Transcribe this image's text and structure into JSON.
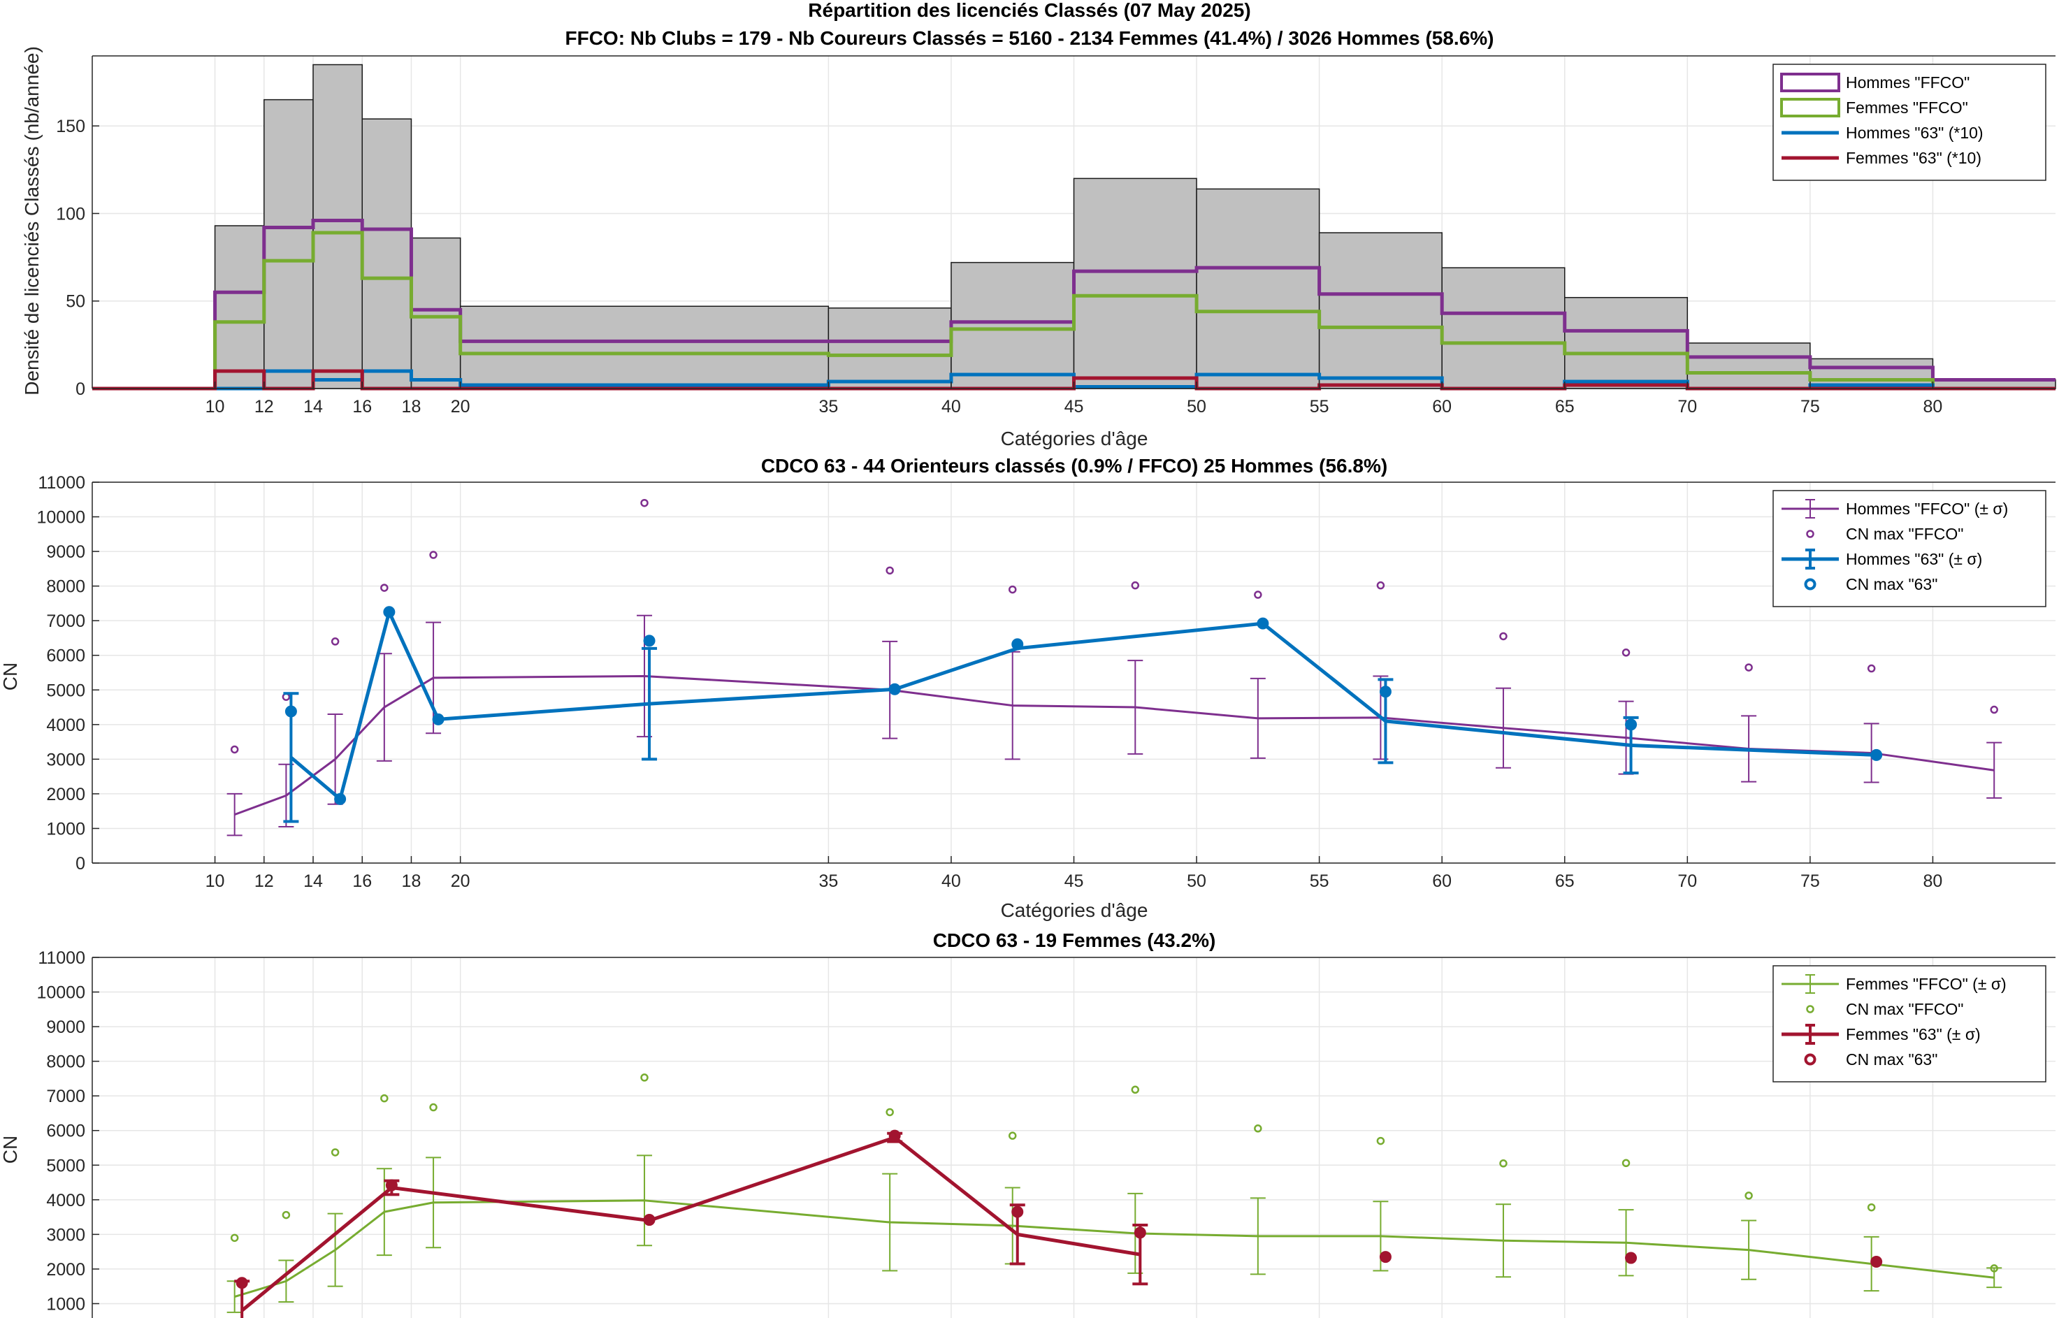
{
  "figure": {
    "title_line1": "Répartition des licenciés Classés (07 May 2025)",
    "title_line2": "FFCO: Nb Clubs = 179   -   Nb Coureurs Classés = 5160   -   2134 Femmes (41.4%) / 3026 Hommes (58.6%)"
  },
  "colors": {
    "homme_ffco": "#7e2f8e",
    "femme_ffco": "#77ac30",
    "homme_63": "#0072bd",
    "femme_63": "#a2142f",
    "bar_fill": "#c0c0c0",
    "bar_edge": "#1a1a1a"
  },
  "chart_data": [
    {
      "id": "density",
      "type": "bar",
      "title": "",
      "xlabel": "Catégories d'âge",
      "ylabel": "Densité de licenciés Classés (nb/année)",
      "xlim": [
        5,
        85
      ],
      "ylim": [
        0,
        190
      ],
      "xticks": [
        10,
        12,
        14,
        16,
        18,
        20,
        35,
        40,
        45,
        50,
        55,
        60,
        65,
        70,
        75,
        80
      ],
      "yticks": [
        0,
        50,
        100,
        150
      ],
      "grid": true,
      "legend_position": "top-right",
      "bin_edges": [
        10,
        12,
        14,
        16,
        18,
        20,
        35,
        40,
        45,
        50,
        55,
        60,
        65,
        70,
        75,
        80,
        85
      ],
      "total_values": [
        93,
        165,
        185,
        154,
        86,
        47,
        46,
        72,
        120,
        114,
        89,
        69,
        52,
        26,
        17,
        5
      ],
      "series": [
        {
          "name": "Hommes \"FFCO\"",
          "color_key": "homme_ffco",
          "values": [
            55,
            92,
            96,
            91,
            45,
            27,
            27,
            38,
            67,
            69,
            54,
            43,
            33,
            18,
            12,
            5
          ]
        },
        {
          "name": "Femmes \"FFCO\"",
          "color_key": "femme_ffco",
          "values": [
            38,
            73,
            89,
            63,
            41,
            20,
            19,
            34,
            53,
            44,
            35,
            26,
            20,
            9,
            5,
            0
          ]
        },
        {
          "name": "Hommes \"63\" (*10)",
          "color_key": "homme_63",
          "values": [
            0,
            10,
            5,
            10,
            5,
            2,
            4,
            8,
            1,
            8,
            6,
            0,
            4,
            0,
            2,
            0
          ]
        },
        {
          "name": "Femmes \"63\" (*10)",
          "color_key": "femme_63",
          "values": [
            10,
            0,
            10,
            0,
            0,
            0,
            0,
            0,
            6,
            0,
            2,
            0,
            2,
            0,
            0,
            0
          ]
        }
      ]
    },
    {
      "id": "men",
      "type": "line",
      "title": "CDCO 63  -  44 Orienteurs classés (0.9% / FFCO)  25 Hommes (56.8%)",
      "xlabel": "Catégories d'âge",
      "ylabel": "CN",
      "xlim": [
        5,
        85
      ],
      "ylim": [
        0,
        11000
      ],
      "xticks": [
        10,
        12,
        14,
        16,
        18,
        20,
        35,
        40,
        45,
        50,
        55,
        60,
        65,
        70,
        75,
        80
      ],
      "yticks": [
        0,
        1000,
        2000,
        3000,
        4000,
        5000,
        6000,
        7000,
        8000,
        9000,
        10000,
        11000
      ],
      "grid": true,
      "legend_position": "top-right",
      "series": [
        {
          "name": "Hommes \"FFCO\" (± σ)",
          "color_key": "homme_ffco",
          "kind": "errorbar",
          "line_width": 3,
          "cap": true,
          "x": [
            10.8,
            12.9,
            14.9,
            16.9,
            18.9,
            27.5,
            37.5,
            42.5,
            47.5,
            52.5,
            57.5,
            62.5,
            67.5,
            72.5,
            77.5,
            82.5
          ],
          "y": [
            1400,
            1950,
            3000,
            4500,
            5350,
            5400,
            5000,
            4550,
            4500,
            4180,
            4200,
            3900,
            3620,
            3300,
            3180,
            2680
          ],
          "err": [
            600,
            900,
            1300,
            1550,
            1600,
            1750,
            1400,
            1550,
            1350,
            1150,
            1200,
            1150,
            1050,
            950,
            850,
            800
          ]
        },
        {
          "name": "CN max \"FFCO\"",
          "color_key": "homme_ffco",
          "kind": "marker_small",
          "x": [
            10.8,
            12.9,
            14.9,
            16.9,
            18.9,
            27.5,
            37.5,
            42.5,
            47.5,
            52.5,
            57.5,
            62.5,
            67.5,
            72.5,
            77.5,
            82.5
          ],
          "y": [
            3280,
            4800,
            6400,
            7950,
            8900,
            10400,
            8450,
            7900,
            8020,
            7750,
            8020,
            6550,
            6080,
            5650,
            5620,
            4430
          ]
        },
        {
          "name": "Hommes \"63\" (± σ)",
          "color_key": "homme_63",
          "kind": "errorbar",
          "line_width": 5,
          "cap": true,
          "x": [
            13.1,
            15.1,
            17.1,
            19.1,
            27.7,
            37.7,
            42.7,
            52.7,
            57.7,
            67.7,
            77.7
          ],
          "y": [
            3050,
            1850,
            7250,
            4150,
            4600,
            5020,
            6200,
            6920,
            4100,
            3400,
            3120
          ],
          "err": [
            1850,
            0,
            0,
            0,
            1600,
            0,
            0,
            0,
            1200,
            800,
            0
          ]
        },
        {
          "name": "CN max \"63\"",
          "color_key": "homme_63",
          "kind": "marker_large",
          "x": [
            13.1,
            15.1,
            17.1,
            19.1,
            27.7,
            37.7,
            42.7,
            52.7,
            57.7,
            67.7,
            77.7
          ],
          "y": [
            4380,
            1850,
            7250,
            4150,
            6420,
            5020,
            6320,
            6920,
            4950,
            4000,
            3120
          ]
        }
      ]
    },
    {
      "id": "women",
      "type": "line",
      "title": "CDCO 63  -  19 Femmes (43.2%)",
      "xlabel": "",
      "ylabel": "CN",
      "xlim": [
        5,
        85
      ],
      "ylim": [
        0,
        11000
      ],
      "xticks": [
        10,
        12,
        14,
        16,
        18,
        20,
        35,
        40,
        45,
        50,
        55,
        60,
        65,
        70,
        75,
        80
      ],
      "yticks": [
        1000,
        2000,
        3000,
        4000,
        5000,
        6000,
        7000,
        8000,
        9000,
        10000,
        11000
      ],
      "grid": true,
      "legend_position": "top-right",
      "series": [
        {
          "name": "Femmes \"FFCO\" (± σ)",
          "color_key": "femme_ffco",
          "kind": "errorbar",
          "line_width": 3,
          "cap": true,
          "x": [
            10.8,
            12.9,
            14.9,
            16.9,
            18.9,
            27.5,
            37.5,
            42.5,
            47.5,
            52.5,
            57.5,
            62.5,
            67.5,
            72.5,
            77.5,
            82.5
          ],
          "y": [
            1200,
            1650,
            2550,
            3650,
            3920,
            3980,
            3350,
            3250,
            3030,
            2950,
            2950,
            2820,
            2760,
            2550,
            2150,
            1750
          ],
          "err": [
            450,
            600,
            1050,
            1250,
            1300,
            1300,
            1400,
            1100,
            1150,
            1100,
            1000,
            1050,
            950,
            850,
            780,
            280
          ]
        },
        {
          "name": "CN max \"FFCO\"",
          "color_key": "femme_ffco",
          "kind": "marker_small",
          "x": [
            10.8,
            12.9,
            14.9,
            16.9,
            18.9,
            27.5,
            37.5,
            42.5,
            47.5,
            52.5,
            57.5,
            62.5,
            67.5,
            72.5,
            77.5,
            82.5
          ],
          "y": [
            2900,
            3560,
            5370,
            6930,
            6670,
            7530,
            6530,
            5850,
            7180,
            6060,
            5700,
            5050,
            5060,
            4120,
            3780,
            2020
          ]
        },
        {
          "name": "Femmes \"63\" (± σ)",
          "color_key": "femme_63",
          "kind": "errorbar",
          "line_width": 5,
          "cap": true,
          "x": [
            11.1,
            17.2,
            27.7,
            37.7,
            42.7,
            47.7
          ],
          "y": [
            800,
            4350,
            3400,
            5800,
            3000,
            2420
          ],
          "err": [
            850,
            200,
            0,
            120,
            850,
            850
          ]
        },
        {
          "name": "CN max \"63\"",
          "color_key": "femme_63",
          "kind": "marker_large",
          "x": [
            11.1,
            17.2,
            27.7,
            37.7,
            42.7,
            47.7,
            57.7,
            67.7,
            77.7
          ],
          "y": [
            1600,
            4420,
            3420,
            5850,
            3650,
            3050,
            2350,
            2320,
            2210
          ]
        }
      ]
    }
  ]
}
